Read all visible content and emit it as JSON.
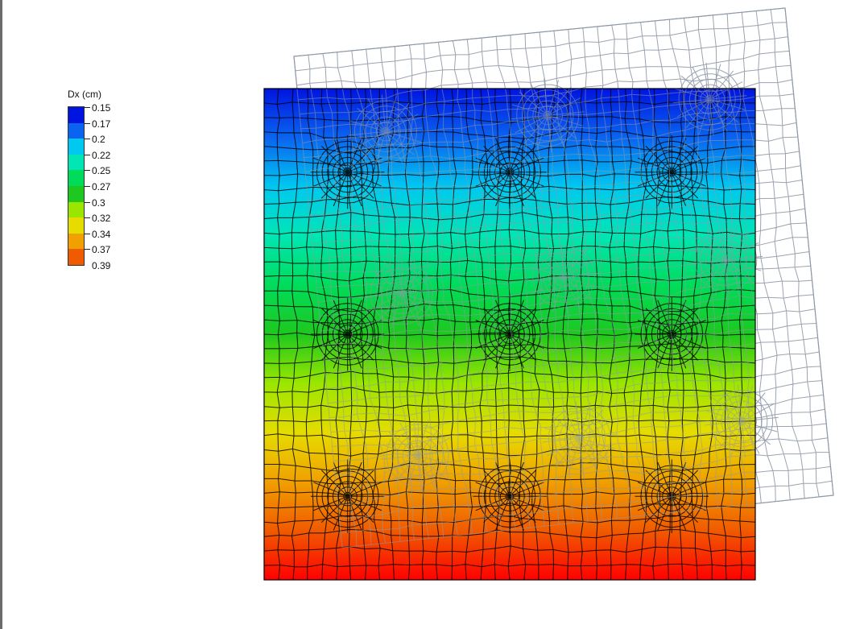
{
  "legend": {
    "title": "Dx (cm)",
    "levels": [
      "0.15",
      "0.17",
      "0.2",
      "0.22",
      "0.25",
      "0.27",
      "0.3",
      "0.32",
      "0.34",
      "0.37",
      "0.39"
    ],
    "colors": [
      "#0014e0",
      "#0a64f0",
      "#00c8f0",
      "#00e6b4",
      "#00dc5a",
      "#1ec81e",
      "#9be600",
      "#e6dc00",
      "#f0a000",
      "#f05a00",
      "#ff0000"
    ]
  },
  "plot": {
    "field_gradient": [
      "#0014e0",
      "#0a64f0",
      "#00c8f0",
      "#00e6b4",
      "#00dc5a",
      "#1ec81e",
      "#9be600",
      "#e6dc00",
      "#f0a000",
      "#f05a00",
      "#ff0000"
    ],
    "deformed_mesh_color": "#8f99a6",
    "undeformed_mesh_color": "#000000",
    "background": "#ffffff"
  }
}
